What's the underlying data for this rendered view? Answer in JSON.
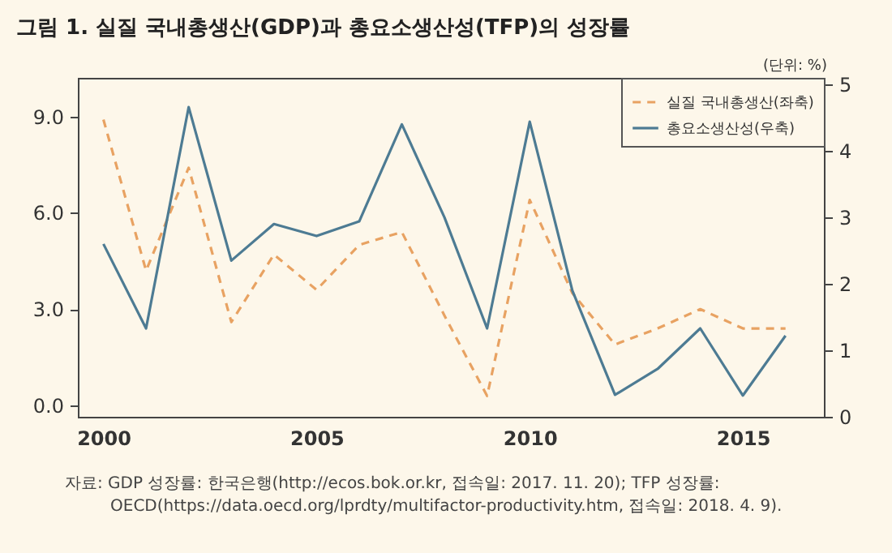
{
  "chart_data": {
    "type": "line",
    "title": "그림 1. 실질 국내총생산(GDP)과 총요소생산성(TFP)의 성장률",
    "annotations": [
      "(단위: %)",
      "자료: GDP 성장률: 한국은행(http://ecos.bok.or.kr, 접속일: 2017. 11. 20); TFP 성장률: OECD(https://data.oecd.org/lprdty/multifactor-productivity.htm, 접속일: 2018. 4. 9)."
    ],
    "x": [
      2000,
      2001,
      2002,
      2003,
      2004,
      2005,
      2006,
      2007,
      2008,
      2009,
      2010,
      2011,
      2012,
      2013,
      2014,
      2015,
      2016
    ],
    "series": [
      {
        "name": "실질 국내총생산(좌축)",
        "color": "#e8a262",
        "line_style": "dashed",
        "values": [
          8.9,
          4.2,
          7.4,
          2.6,
          4.7,
          3.6,
          5.0,
          5.4,
          2.8,
          0.3,
          6.4,
          3.5,
          1.9,
          2.4,
          3.0,
          2.4,
          2.4
        ]
      },
      {
        "name": "총요소생산성(우축)",
        "color": "#4d7b93",
        "line_style": "solid",
        "axis": "y2",
        "values": [
          2.6,
          1.33,
          4.66,
          2.35,
          2.9,
          2.72,
          2.94,
          4.4,
          3.0,
          1.33,
          4.44,
          1.9,
          0.33,
          0.72,
          1.33,
          0.32,
          1.22
        ]
      }
    ],
    "xlim": [
      1999.4,
      2016.9
    ],
    "xticks": [
      2000,
      2005,
      2010,
      2015
    ],
    "ylim": [
      -0.35,
      10.2
    ],
    "yticks": [
      {
        "value": 0,
        "label": "0.0"
      },
      {
        "value": 3,
        "label": "3.0"
      },
      {
        "value": 6,
        "label": "6.0"
      },
      {
        "value": 9,
        "label": "9.0"
      }
    ],
    "y2lim": [
      0,
      5.1
    ],
    "y2ticks": [
      0,
      1,
      2,
      3,
      4,
      5
    ],
    "grid": false,
    "legend": "top right",
    "marker": "none"
  }
}
